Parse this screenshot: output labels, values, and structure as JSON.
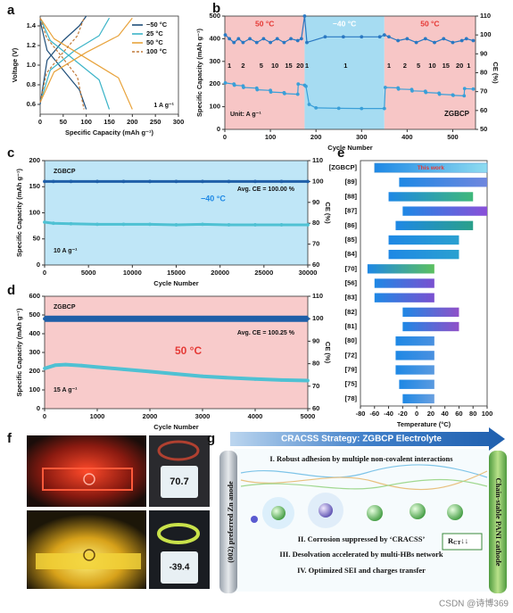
{
  "chart_data": [
    {
      "type": "line",
      "panel": "a",
      "xlabel": "Specific Capacity (mAh g⁻¹)",
      "ylabel": "Voltage (V)",
      "xlim": [
        0,
        300
      ],
      "xticks": [
        0,
        50,
        100,
        150,
        200,
        250,
        300
      ],
      "ylim": [
        0.5,
        1.5
      ],
      "yticks": [
        0.6,
        0.8,
        {
          "value": 1,
          "label": "1.0"
        },
        1.2,
        1.4
      ],
      "legend": "upper right",
      "notes": [
        "1 A g⁻¹"
      ],
      "series": [
        {
          "name": "−50 °C",
          "color": "#1f4e79",
          "x": [
            0,
            15,
            50,
            85,
            100,
            null,
            0,
            15,
            50,
            85,
            100
          ],
          "values": [
            1.45,
            1.15,
            0.95,
            0.75,
            0.55,
            null,
            0.6,
            1.05,
            1.25,
            1.4,
            1.5
          ]
        },
        {
          "name": "25 °C",
          "color": "#3cb4c8",
          "x": [
            0,
            22,
            75,
            128,
            150,
            null,
            0,
            22,
            75,
            128,
            150
          ],
          "values": [
            1.48,
            1.25,
            1.05,
            0.85,
            0.55,
            null,
            0.62,
            0.95,
            1.15,
            1.3,
            1.48
          ]
        },
        {
          "name": "50 °C",
          "color": "#e8a33c",
          "x": [
            0,
            30,
            100,
            170,
            200,
            null,
            0,
            30,
            100,
            170,
            200
          ],
          "values": [
            1.48,
            1.27,
            1.07,
            0.87,
            0.55,
            null,
            0.62,
            0.93,
            1.13,
            1.3,
            1.48
          ]
        },
        {
          "name": "100 °C",
          "color": "#c07a3a",
          "dash": true,
          "x": [
            0,
            14,
            48,
            81,
            95,
            null,
            0,
            14,
            48,
            81,
            95
          ],
          "values": [
            1.48,
            1.28,
            1.08,
            0.88,
            0.55,
            null,
            0.62,
            0.92,
            1.12,
            1.3,
            1.48
          ]
        }
      ]
    },
    {
      "type": "line",
      "panel": "b",
      "xlabel": "Cycle Number",
      "ylabel": "Specific Capacity (mAh g⁻¹)",
      "y2label": "CE (%)",
      "xlim": [
        0,
        550
      ],
      "xticks": [
        0,
        100,
        200,
        300,
        400,
        500
      ],
      "ylim": [
        0,
        500
      ],
      "yticks": [
        0,
        100,
        200,
        300,
        400,
        500
      ],
      "y2lim": [
        50,
        110
      ],
      "y2ticks": [
        50,
        60,
        70,
        80,
        90,
        100,
        110
      ],
      "regions": [
        {
          "from": 0,
          "to": 175,
          "label": "50 °C",
          "color": "#f7c6c6",
          "label_color": "#e53935"
        },
        {
          "from": 175,
          "to": 350,
          "label": "−40 °C",
          "color": "#a6dcf2",
          "label_color": "#ffffff"
        },
        {
          "from": 350,
          "to": 550,
          "label": "50 °C",
          "color": "#f7c6c6",
          "label_color": "#e53935"
        }
      ],
      "rate_labels": {
        "x": [
          10,
          40,
          80,
          110,
          140,
          165,
          180,
          265,
          360,
          395,
          425,
          455,
          485,
          515,
          535
        ],
        "labels": [
          "1",
          "2",
          "5",
          "10",
          "15",
          "20",
          "1",
          "1",
          "1",
          "2",
          "5",
          "10",
          "15",
          "20",
          "1"
        ]
      },
      "notes": [
        "Unit: A g⁻¹",
        "ZGBCP"
      ],
      "series": [
        {
          "name": "Specific Capacity",
          "color": "#3a9fd8",
          "marker": true,
          "x": [
            1,
            20,
            21,
            40,
            41,
            70,
            71,
            100,
            101,
            130,
            131,
            160,
            161,
            175,
            178,
            185,
            200,
            250,
            300,
            350,
            352,
            380,
            381,
            410,
            411,
            440,
            441,
            470,
            471,
            500,
            501,
            525,
            526,
            545
          ],
          "values": [
            205,
            200,
            195,
            192,
            185,
            182,
            175,
            172,
            165,
            162,
            158,
            155,
            200,
            195,
            190,
            110,
            95,
            93,
            92,
            92,
            185,
            183,
            178,
            176,
            170,
            168,
            163,
            160,
            155,
            152,
            150,
            148,
            180,
            178
          ]
        },
        {
          "name": "CE",
          "color": "#2a78c2",
          "marker": true,
          "axis": "y2",
          "x": [
            1,
            10,
            20,
            30,
            40,
            55,
            70,
            85,
            100,
            115,
            130,
            145,
            160,
            168,
            175,
            180,
            220,
            260,
            300,
            340,
            350,
            360,
            380,
            400,
            420,
            440,
            460,
            480,
            500,
            520,
            530,
            545
          ],
          "values": [
            100,
            98,
            96,
            98,
            96,
            98,
            96,
            98,
            96,
            98,
            96,
            98,
            97,
            98,
            110,
            96,
            99,
            99,
            99,
            99,
            100,
            99,
            97,
            98,
            96,
            98,
            96,
            98,
            96,
            97,
            98,
            97
          ]
        }
      ]
    },
    {
      "type": "line",
      "panel": "c",
      "xlabel": "Cycle Number",
      "ylabel": "Specific Capacity (mAh g⁻¹)",
      "y2label": "CE (%)",
      "background": "#bfe6f7",
      "xlim": [
        0,
        30000
      ],
      "xticks": [
        0,
        5000,
        10000,
        15000,
        20000,
        25000,
        30000
      ],
      "ylim": [
        0,
        200
      ],
      "yticks": [
        0,
        50,
        100,
        150,
        200
      ],
      "y2lim": [
        60,
        110
      ],
      "y2ticks": [
        60,
        70,
        80,
        90,
        100,
        110
      ],
      "notes": [
        "ZGBCP",
        "−40 °C",
        "Avg. CE = 100.00 %",
        "10 A g⁻¹"
      ],
      "x": [
        0,
        1000,
        3000,
        6000,
        9000,
        12000,
        15000,
        18000,
        21000,
        24000,
        27000,
        30000
      ],
      "series": [
        {
          "name": "Specific Capacity",
          "color": "#4fc1d3",
          "marker": true,
          "width": 3,
          "values": [
            82,
            80,
            79,
            78,
            78,
            78,
            77,
            78,
            77,
            77,
            77,
            77
          ]
        },
        {
          "name": "CE",
          "color": "#1f5fa8",
          "marker": true,
          "width": 3,
          "axis": "y2",
          "values": [
            100,
            100,
            100,
            100,
            100,
            100,
            100,
            100,
            100,
            100,
            100,
            100
          ]
        }
      ]
    },
    {
      "type": "line",
      "panel": "d",
      "xlabel": "Cycle Number",
      "ylabel": "Specific Capacity (mAh g⁻¹)",
      "y2label": "CE (%)",
      "background": "#f8cbcb",
      "xlim": [
        0,
        5000
      ],
      "xticks": [
        0,
        1000,
        2000,
        3000,
        4000,
        5000
      ],
      "ylim": [
        0,
        600
      ],
      "yticks": [
        0,
        100,
        200,
        300,
        400,
        500,
        600
      ],
      "y2lim": [
        60,
        110
      ],
      "y2ticks": [
        60,
        70,
        80,
        90,
        100,
        110
      ],
      "notes": [
        "ZGBCP",
        "50 °C",
        "Avg. CE = 100.25 %",
        "15 A g⁻¹"
      ],
      "x": [
        0,
        200,
        400,
        700,
        1000,
        1500,
        2000,
        2500,
        3000,
        3500,
        4000,
        4500,
        5000
      ],
      "series": [
        {
          "name": "Specific Capacity",
          "color": "#4fc1d3",
          "marker": true,
          "width": 4,
          "values": [
            215,
            232,
            235,
            230,
            222,
            210,
            198,
            185,
            173,
            165,
            158,
            153,
            150
          ]
        },
        {
          "name": "CE",
          "color": "#1f5fa8",
          "marker": true,
          "width": 7,
          "axis": "y2",
          "values": [
            100,
            100,
            100,
            100,
            100,
            100,
            100,
            100,
            100,
            100,
            100,
            100,
            100
          ]
        }
      ]
    },
    {
      "type": "range_bar",
      "panel": "e",
      "xlabel": "Temperature (°C)",
      "xlim": [
        -80,
        100
      ],
      "xticks": [
        -80,
        -60,
        -40,
        -20,
        0,
        20,
        40,
        60,
        80,
        100
      ],
      "categories": [
        "[ZGBCP]",
        "[89]",
        "[88]",
        "[87]",
        "[86]",
        "[85]",
        "[84]",
        "[70]",
        "[56]",
        "[83]",
        "[82]",
        "[81]",
        "[80]",
        "[72]",
        "[79]",
        "[75]",
        "[78]"
      ],
      "ranges": [
        [
          -60,
          100
        ],
        [
          -25,
          100
        ],
        [
          -40,
          80
        ],
        [
          -20,
          100
        ],
        [
          -30,
          80
        ],
        [
          -40,
          60
        ],
        [
          -40,
          60
        ],
        [
          -70,
          25
        ],
        [
          -60,
          25
        ],
        [
          -60,
          25
        ],
        [
          -20,
          60
        ],
        [
          -20,
          60
        ],
        [
          -30,
          25
        ],
        [
          -30,
          25
        ],
        [
          -30,
          25
        ],
        [
          -25,
          25
        ],
        [
          -20,
          25
        ]
      ],
      "colors": [
        "#8fdcf0",
        "#6f86de",
        "#3fb87a",
        "#8a4fd8",
        "#2aa08a",
        "#2aa0d0",
        "#2aa0d0",
        "#5cc060",
        "#7a50d0",
        "#7a50d0",
        "#9050c8",
        "#9050c8",
        "#4a90e0",
        "#4a90e0",
        "#5a9ae0",
        "#5a9ae0",
        "#6aa0e0"
      ],
      "annotation": "This work"
    }
  ],
  "photos": {
    "panel": "f",
    "readouts": [
      "70.7",
      "-39.4"
    ]
  },
  "diagram": {
    "panel": "g",
    "title": "CRACSS Strategy: ZGBCP Electrolyte",
    "left": "(002) preferred Zn anode",
    "right": "Chain-stable PANI cathode",
    "steps": [
      "I. Robust adhesion by multiple non-covalent interactions",
      "II. Corrosion suppressed by ‘CRACSS’",
      "III. Desolvation accelerated by multi-HBs network",
      "IV. Optimized SEI and charges transfer"
    ],
    "rct": {
      "main": "R",
      "sub": "CT",
      "arrows": "↓↓"
    }
  },
  "watermark": "CSDN @诗博369"
}
